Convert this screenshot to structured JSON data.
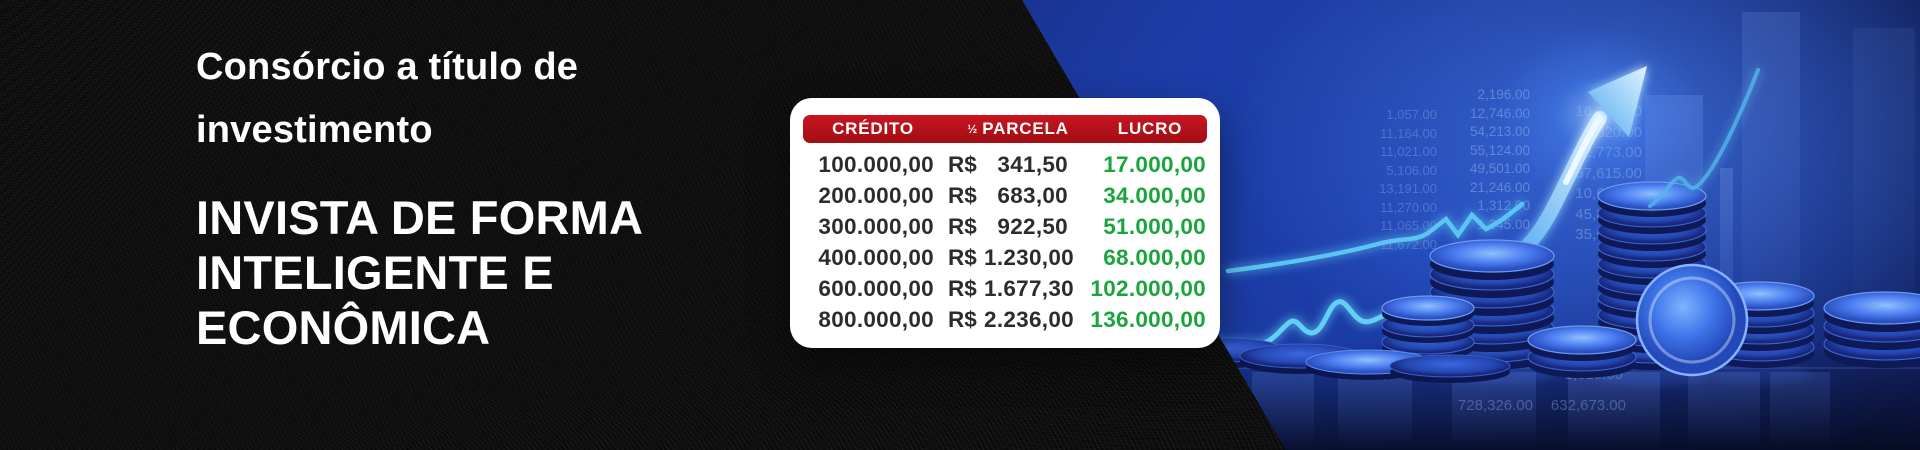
{
  "left_panel": {
    "headline_lines": [
      "Consórcio a título de",
      "investimento"
    ],
    "title_lines": [
      "INVISTA DE FORMA",
      "INTELIGENTE E",
      "ECONÔMICA"
    ]
  },
  "offer_table": {
    "header": {
      "credito": "CRÉDITO",
      "parcela_prefix": "½",
      "parcela": "PARCELA",
      "lucro": "LUCRO"
    },
    "rows": [
      {
        "credito": "100.000,00",
        "currency": "R$",
        "parcela": "341,50",
        "lucro": "17.000,00"
      },
      {
        "credito": "200.000,00",
        "currency": "R$",
        "parcela": "683,00",
        "lucro": "34.000,00"
      },
      {
        "credito": "300.000,00",
        "currency": "R$",
        "parcela": "922,50",
        "lucro": "51.000,00"
      },
      {
        "credito": "400.000,00",
        "currency": "R$",
        "parcela": "1.230,00",
        "lucro": "68.000,00"
      },
      {
        "credito": "600.000,00",
        "currency": "R$",
        "parcela": "1.677,30",
        "lucro": "102.000,00"
      },
      {
        "credito": "800.000,00",
        "currency": "R$",
        "parcela": "2.236,00",
        "lucro": "136.000,00"
      }
    ]
  },
  "illustration": {
    "bg_table": {
      "col_a": [
        "1,057.00",
        "11,164.00",
        "11,021.00",
        "5,106.00",
        "13,191.00",
        "11,270.00",
        "11,065.00",
        "11,672.00"
      ],
      "col_b": [
        "2,196.00",
        "12,746.00",
        "54,213.00",
        "55,124.00",
        "49,501.00",
        "21,246.00",
        "1,312.00",
        "1,245.00"
      ],
      "col_c": [
        "16,197.00",
        "1,320.00",
        "12,773.00",
        "157,615.00",
        "10,615.00",
        "45,815.00",
        "35,901.00"
      ],
      "floor": [
        "22,109.00",
        "1,619.00",
        "728,326.00",
        "632,673.00"
      ]
    }
  },
  "colors": {
    "header_red_top": "#c81520",
    "header_red_bottom": "#a30d14",
    "profit_green": "#1aa53c",
    "row_text": "#2e2b2b",
    "line_cyan": "#62d0f6",
    "arrow_light": "#dff4ff",
    "panel_blue": "#1c3fae"
  }
}
